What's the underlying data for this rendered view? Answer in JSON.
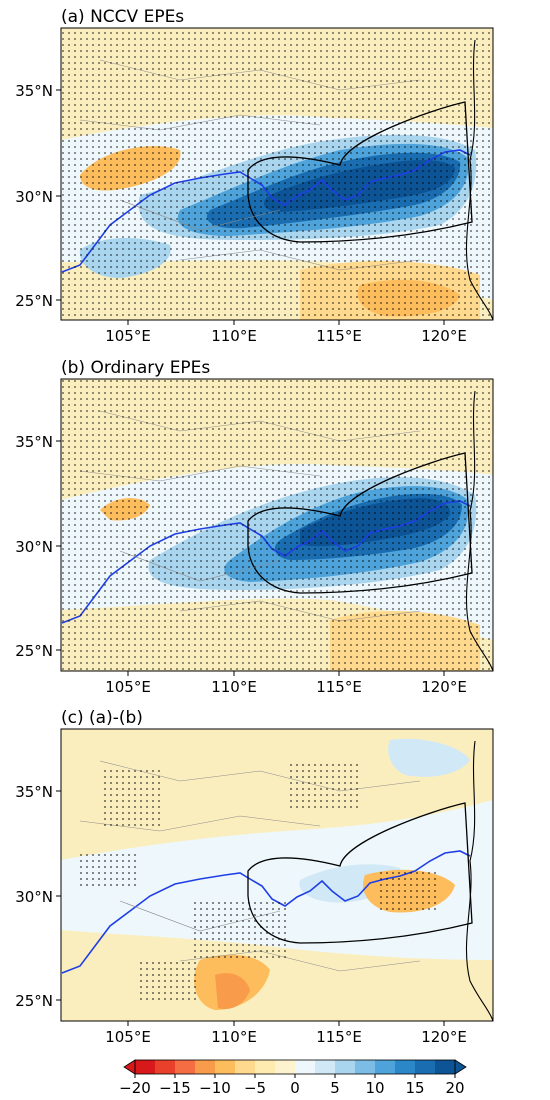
{
  "panels": [
    {
      "title": "(a) NCCV EPEs"
    },
    {
      "title": "(b) Ordinary EPEs"
    },
    {
      "title": "(c) (a)-(b)"
    }
  ],
  "y_ticks": [
    "35°N",
    "30°N",
    "25°N"
  ],
  "x_ticks": [
    "105°E",
    "110°E",
    "115°E",
    "120°E"
  ],
  "map_extent": {
    "lon": [
      102,
      124
    ],
    "lat": [
      24,
      38
    ]
  },
  "colorbar": {
    "ticks": [
      "−20",
      "−15",
      "−10",
      "−5",
      "0",
      "5",
      "10",
      "15",
      "20"
    ],
    "colors": [
      "#d7191c",
      "#e8402a",
      "#f46d43",
      "#f89c4c",
      "#fdbd5c",
      "#fed98e",
      "#ffeab0",
      "#fdf3cf",
      "#eef7fb",
      "#d1e9f6",
      "#a9d5ef",
      "#7cbde6",
      "#4da3da",
      "#2b87c8",
      "#1a6db0",
      "#0d5496"
    ]
  },
  "colors": {
    "river": "#1f3fe6",
    "region_outline": "#000000",
    "boundaries": "#8c8c8c"
  }
}
